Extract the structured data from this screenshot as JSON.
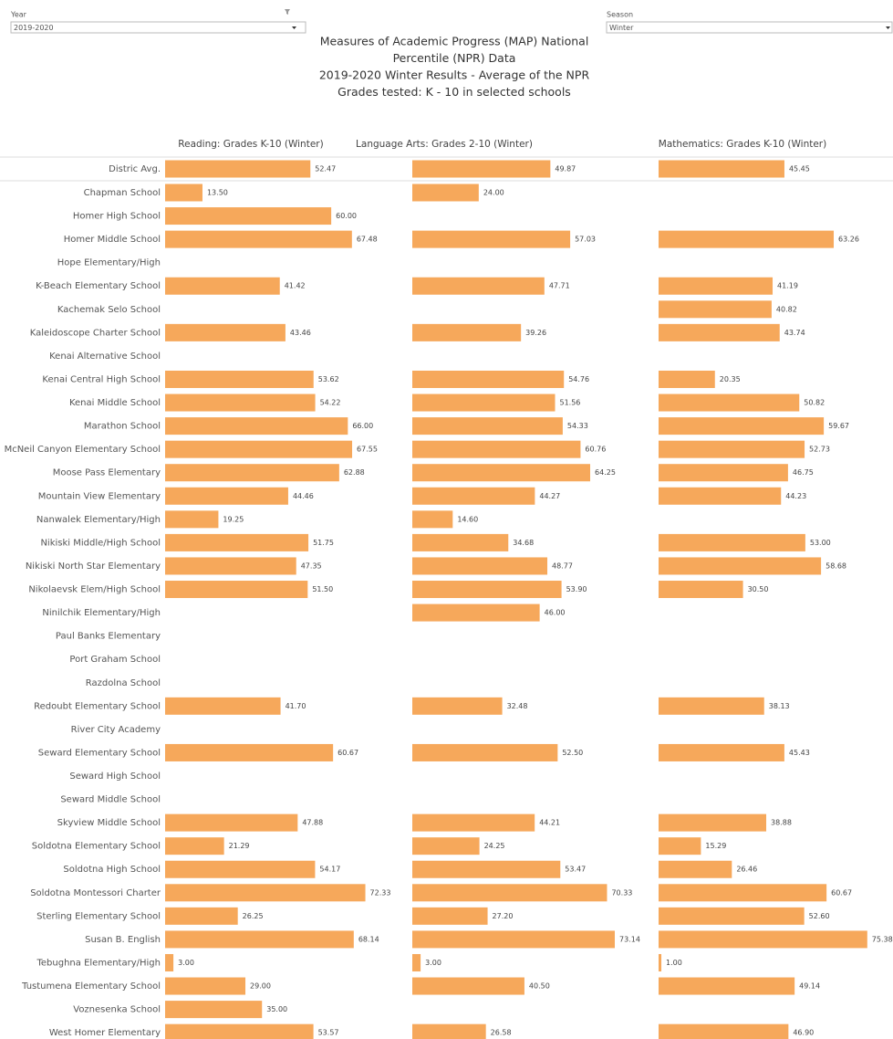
{
  "filters": [
    {
      "label": "Year",
      "value": "2019-2020"
    },
    {
      "label": "Season",
      "value": "Winter"
    }
  ],
  "chart_data": {
    "type": "bar",
    "orientation": "horizontal",
    "title": [
      "Measures of Academic Progress (MAP) National",
      "Percentile (NPR) Data",
      "2019-2020 Winter Results - Average of the NPR",
      "Grades tested: K - 10 in selected schools"
    ],
    "xlim": [
      0,
      85
    ],
    "categories": [
      "Distric Avg.",
      "Chapman School",
      "Homer High School",
      "Homer Middle School",
      "Hope Elementary/High",
      "K-Beach Elementary School",
      "Kachemak Selo School",
      "Kaleidoscope Charter School",
      "Kenai Alternative School",
      "Kenai Central High School",
      "Kenai Middle School",
      "Marathon School",
      "McNeil Canyon Elementary School",
      "Moose Pass Elementary",
      "Mountain View Elementary",
      "Nanwalek Elementary/High",
      "Nikiski Middle/High School",
      "Nikiski North Star Elementary",
      "Nikolaevsk Elem/High School",
      "Ninilchik Elementary/High",
      "Paul Banks Elementary",
      "Port Graham School",
      "Razdolna School",
      "Redoubt Elementary School",
      "River City Academy",
      "Seward Elementary School",
      "Seward High School",
      "Seward Middle School",
      "Skyview Middle School",
      "Soldotna Elementary School",
      "Soldotna High School",
      "Soldotna Montessori Charter",
      "Sterling Elementary School",
      "Susan B. English",
      "Tebughna Elementary/High",
      "Tustumena Elementary School",
      "Voznesenka School",
      "West Homer Elementary"
    ],
    "series": [
      {
        "name": "Reading: Grades K-10 (Winter)",
        "color": "#f6a85b",
        "values": [
          52.47,
          13.5,
          60,
          67.48,
          null,
          41.42,
          null,
          43.46,
          null,
          53.62,
          54.22,
          66,
          67.55,
          62.88,
          44.46,
          19.25,
          51.75,
          47.35,
          51.5,
          null,
          null,
          null,
          null,
          41.7,
          null,
          60.67,
          null,
          null,
          47.88,
          21.29,
          54.17,
          72.33,
          26.25,
          68.14,
          3,
          29,
          35,
          53.57
        ],
        "value_labels": [
          "52.47",
          "13.50",
          "60.00",
          "67.48",
          null,
          "41.42",
          null,
          "43.46",
          null,
          "53.62",
          "54.22",
          "66.00",
          "67.55",
          "62.88",
          "44.46",
          "19.25",
          "51.75",
          "47.35",
          "51.50",
          null,
          null,
          null,
          null,
          "41.70",
          null,
          "60.67",
          null,
          null,
          "47.88",
          "21.29",
          "54.17",
          "72.33",
          "26.25",
          "68.14",
          "3.00",
          "29.00",
          "35.00",
          "53.57"
        ]
      },
      {
        "name": "Language Arts: Grades 2-10 (Winter)",
        "color": "#f6a85b",
        "values": [
          49.87,
          24,
          null,
          57.03,
          null,
          47.71,
          null,
          39.26,
          null,
          54.76,
          51.56,
          54.33,
          60.76,
          64.25,
          44.27,
          14.6,
          34.68,
          48.77,
          53.9,
          46,
          null,
          null,
          null,
          32.48,
          null,
          52.5,
          null,
          null,
          44.21,
          24.25,
          53.47,
          70.33,
          27.2,
          73.14,
          3,
          40.5,
          null,
          26.58
        ],
        "value_labels": [
          "49.87",
          "24.00",
          null,
          "57.03",
          null,
          "47.71",
          null,
          "39.26",
          null,
          "54.76",
          "51.56",
          "54.33",
          "60.76",
          "64.25",
          "44.27",
          "14.60",
          "34.68",
          "48.77",
          "53.90",
          "46.00",
          null,
          null,
          null,
          "32.48",
          null,
          "52.50",
          null,
          null,
          "44.21",
          "24.25",
          "53.47",
          "70.33",
          "27.20",
          "73.14",
          "3.00",
          "40.50",
          null,
          "26.58"
        ]
      },
      {
        "name": "Mathematics: Grades K-10 (Winter)",
        "color": "#f6a85b",
        "values": [
          45.45,
          null,
          null,
          63.26,
          null,
          41.19,
          40.82,
          43.74,
          null,
          20.35,
          50.82,
          59.67,
          52.73,
          46.75,
          44.23,
          null,
          53,
          58.68,
          30.5,
          null,
          null,
          null,
          null,
          38.13,
          null,
          45.43,
          null,
          null,
          38.88,
          15.29,
          26.46,
          60.67,
          52.6,
          75.38,
          1,
          49.14,
          null,
          46.9
        ],
        "value_labels": [
          "45.45",
          null,
          null,
          "63.26",
          null,
          "41.19",
          "40.82",
          "43.74",
          null,
          "20.35",
          "50.82",
          "59.67",
          "52.73",
          "46.75",
          "44.23",
          null,
          "53.00",
          "58.68",
          "30.50",
          null,
          null,
          null,
          null,
          "38.13",
          null,
          "45.43",
          null,
          null,
          "38.88",
          "15.29",
          "26.46",
          "60.67",
          "52.60",
          "75.38",
          "1.00",
          "49.14",
          null,
          "46.90"
        ]
      }
    ]
  }
}
